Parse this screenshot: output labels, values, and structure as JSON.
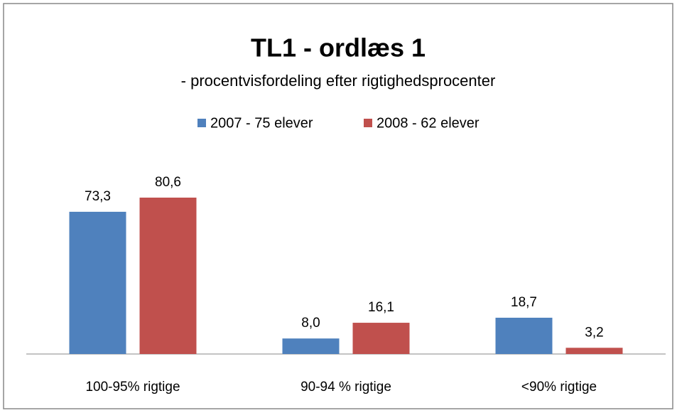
{
  "chart_data": {
    "type": "bar",
    "title": "TL1 - ordlæs 1",
    "subtitle": "- procentvisfordeling efter rigtighedsprocenter",
    "categories": [
      "100-95% rigtige",
      "90-94 % rigtige",
      "<90% rigtige"
    ],
    "series": [
      {
        "name": "2007 - 75 elever",
        "color": "#4f81bd",
        "values": [
          73.3,
          8.0,
          18.7
        ],
        "value_labels": [
          "73,3",
          "8,0",
          "18,7"
        ]
      },
      {
        "name": "2008 - 62 elever",
        "color": "#c0504d",
        "values": [
          80.6,
          16.1,
          3.2
        ],
        "value_labels": [
          "80,6",
          "16,1",
          "3,2"
        ]
      }
    ],
    "legend": "top"
  }
}
